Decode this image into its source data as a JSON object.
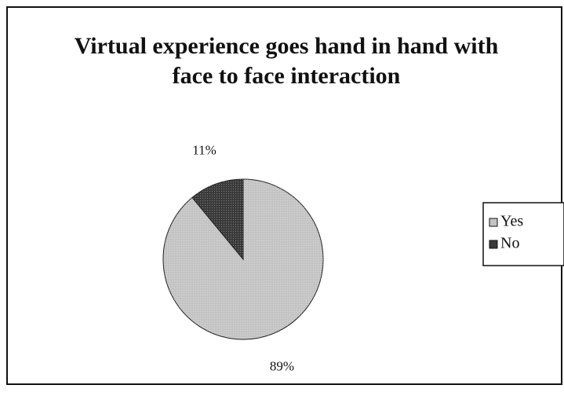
{
  "chart_data": {
    "type": "pie",
    "title": "Virtual experience goes hand in hand with face to face interaction",
    "categories": [
      "Yes",
      "No"
    ],
    "values": [
      89,
      11
    ],
    "value_labels": [
      "89%",
      "11%"
    ],
    "colors": [
      "#c4c4c4",
      "#3a3a3a"
    ],
    "legend": "right"
  }
}
